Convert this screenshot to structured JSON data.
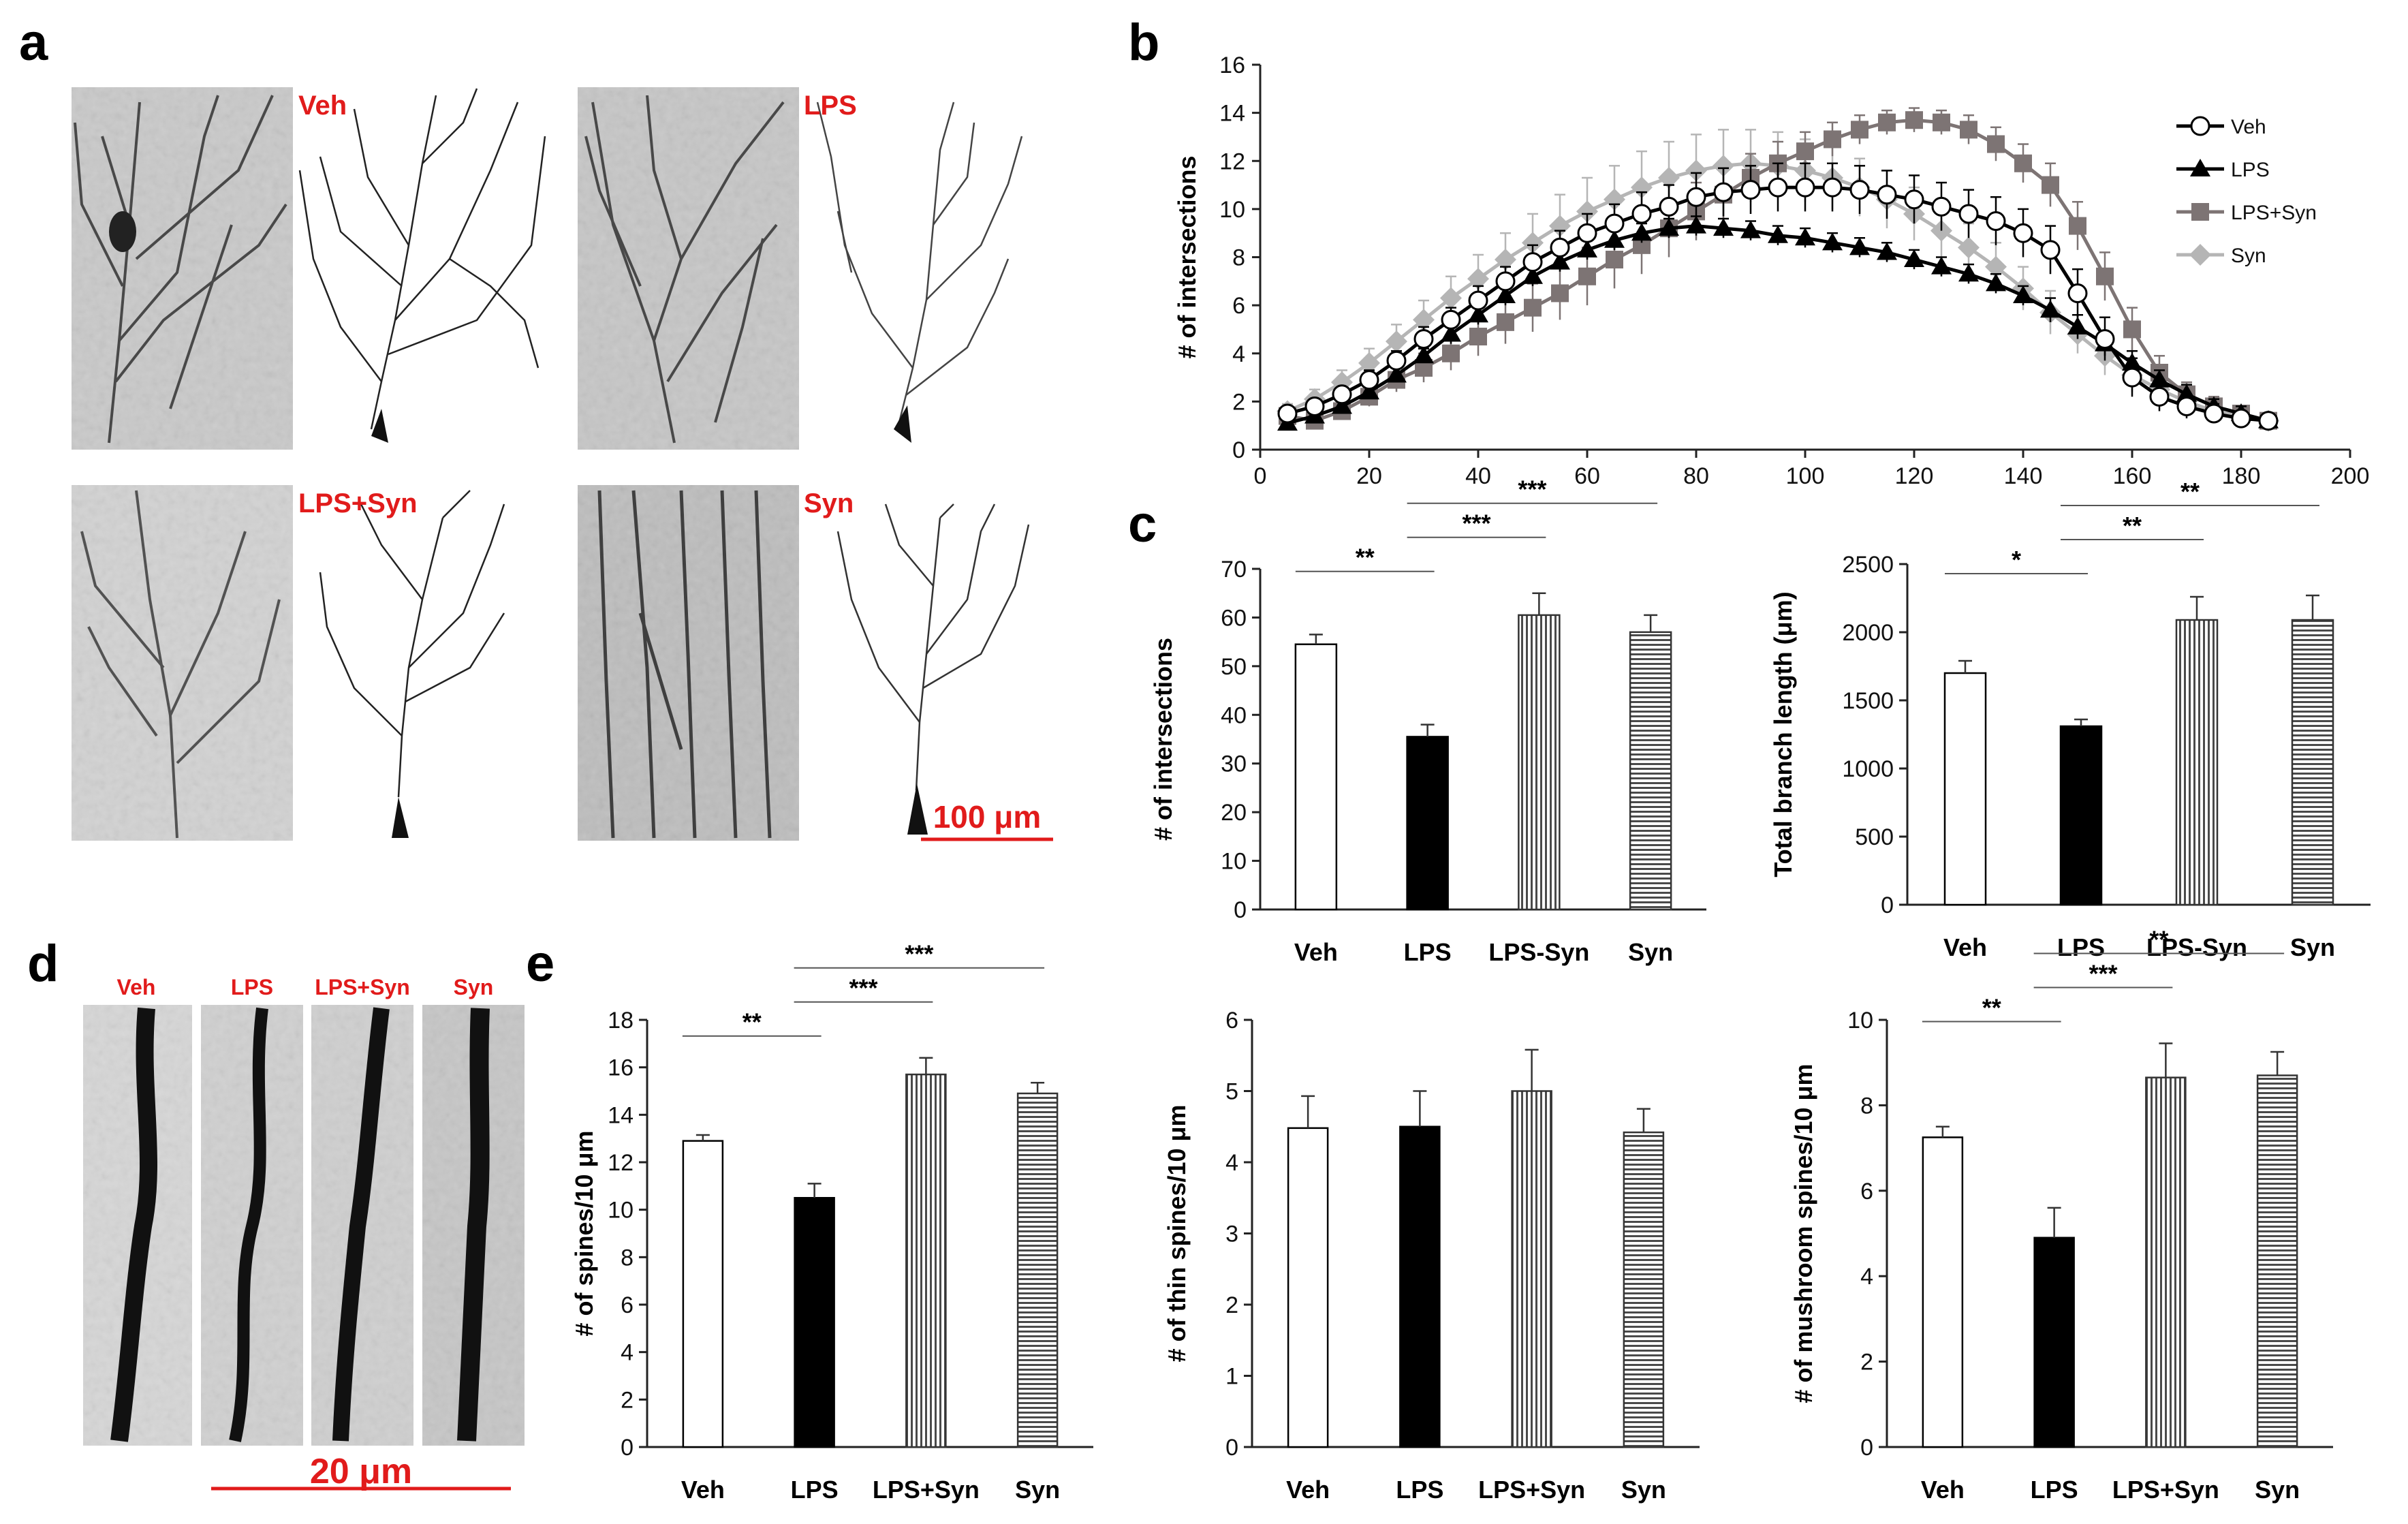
{
  "panel_labels": [
    "a",
    "b",
    "c",
    "d",
    "e"
  ],
  "panel_a": {
    "groups": [
      "Veh",
      "LPS",
      "LPS+Syn",
      "Syn"
    ],
    "scale_bar": "100 μm"
  },
  "panel_d": {
    "groups": [
      "Veh",
      "LPS",
      "LPS+Syn",
      "Syn"
    ],
    "scale_bar": "20 μm"
  },
  "colors": {
    "label_red": "#e11b1b",
    "veh": "#000000",
    "lps": "#000000",
    "lps_syn": "#7d7474",
    "syn": "#b5b5b5"
  },
  "chart_data": [
    {
      "id": "b",
      "type": "line",
      "title": "",
      "xlabel": "",
      "ylabel": "# of intersections",
      "xlim": [
        0,
        200
      ],
      "ylim": [
        0,
        16
      ],
      "xticks": [
        0,
        20,
        40,
        60,
        80,
        100,
        120,
        140,
        160,
        180,
        200
      ],
      "yticks": [
        0,
        2,
        4,
        6,
        8,
        10,
        12,
        14,
        16
      ],
      "x": [
        5,
        10,
        15,
        20,
        25,
        30,
        35,
        40,
        45,
        50,
        55,
        60,
        65,
        70,
        75,
        80,
        85,
        90,
        95,
        100,
        105,
        110,
        115,
        120,
        125,
        130,
        135,
        140,
        145,
        150,
        155,
        160,
        165,
        170,
        175,
        180,
        185
      ],
      "legend": [
        "Veh",
        "LPS",
        "LPS+Syn",
        "Syn"
      ],
      "legend_position": "top-right",
      "series": [
        {
          "name": "Veh",
          "marker": "open-circle",
          "values": [
            1.5,
            1.8,
            2.3,
            2.9,
            3.7,
            4.6,
            5.4,
            6.2,
            7.0,
            7.8,
            8.4,
            9.0,
            9.4,
            9.8,
            10.1,
            10.5,
            10.7,
            10.8,
            10.9,
            10.9,
            10.9,
            10.8,
            10.6,
            10.4,
            10.1,
            9.8,
            9.5,
            9.0,
            8.3,
            6.5,
            4.6,
            3.0,
            2.2,
            1.8,
            1.5,
            1.3,
            1.2
          ],
          "errors": [
            0.3,
            0.3,
            0.3,
            0.4,
            0.4,
            0.5,
            0.5,
            0.6,
            0.6,
            0.7,
            0.7,
            0.8,
            0.8,
            0.9,
            0.9,
            1.0,
            1.0,
            1.0,
            1.0,
            1.0,
            1.0,
            1.0,
            1.0,
            1.0,
            1.0,
            1.0,
            1.0,
            1.0,
            1.0,
            1.0,
            0.9,
            0.8,
            0.6,
            0.5,
            0.4,
            0.3,
            0.3
          ]
        },
        {
          "name": "LPS",
          "marker": "filled-triangle",
          "values": [
            1.1,
            1.4,
            1.8,
            2.4,
            3.1,
            3.9,
            4.8,
            5.6,
            6.4,
            7.2,
            7.8,
            8.3,
            8.7,
            9.0,
            9.2,
            9.3,
            9.2,
            9.1,
            8.9,
            8.8,
            8.6,
            8.4,
            8.2,
            7.9,
            7.6,
            7.3,
            6.9,
            6.4,
            5.8,
            5.1,
            4.4,
            3.6,
            2.9,
            2.3,
            1.8,
            1.5,
            1.2
          ],
          "errors": [
            0.2,
            0.2,
            0.2,
            0.3,
            0.3,
            0.3,
            0.4,
            0.4,
            0.4,
            0.4,
            0.4,
            0.4,
            0.4,
            0.4,
            0.4,
            0.4,
            0.4,
            0.4,
            0.4,
            0.4,
            0.4,
            0.4,
            0.4,
            0.4,
            0.4,
            0.4,
            0.4,
            0.4,
            0.5,
            0.5,
            0.5,
            0.5,
            0.4,
            0.4,
            0.3,
            0.3,
            0.3
          ]
        },
        {
          "name": "LPS+Syn",
          "marker": "filled-square",
          "values": [
            1.4,
            1.2,
            1.6,
            2.2,
            2.9,
            3.4,
            4.0,
            4.7,
            5.3,
            5.9,
            6.5,
            7.2,
            7.9,
            8.5,
            9.2,
            9.9,
            10.6,
            11.3,
            11.9,
            12.4,
            12.9,
            13.3,
            13.6,
            13.7,
            13.6,
            13.3,
            12.7,
            11.9,
            11.0,
            9.3,
            7.2,
            5.0,
            3.2,
            2.3,
            1.8,
            1.5,
            1.2
          ],
          "errors": [
            0.3,
            0.3,
            0.3,
            0.4,
            0.5,
            0.6,
            0.7,
            0.8,
            0.9,
            1.0,
            1.1,
            1.2,
            1.2,
            1.2,
            1.2,
            1.2,
            1.1,
            1.0,
            0.9,
            0.8,
            0.7,
            0.6,
            0.5,
            0.5,
            0.5,
            0.6,
            0.7,
            0.8,
            0.9,
            1.0,
            1.0,
            0.9,
            0.7,
            0.5,
            0.4,
            0.3,
            0.3
          ]
        },
        {
          "name": "Syn",
          "marker": "filled-diamond",
          "values": [
            1.6,
            2.1,
            2.8,
            3.6,
            4.5,
            5.4,
            6.3,
            7.1,
            7.9,
            8.6,
            9.3,
            9.9,
            10.4,
            10.9,
            11.3,
            11.6,
            11.8,
            11.9,
            11.8,
            11.6,
            11.3,
            10.9,
            10.4,
            9.8,
            9.1,
            8.4,
            7.6,
            6.7,
            5.7,
            4.8,
            3.9,
            3.1,
            2.5,
            2.0,
            1.6,
            1.4,
            1.2
          ],
          "errors": [
            0.3,
            0.4,
            0.5,
            0.6,
            0.7,
            0.8,
            0.9,
            1.0,
            1.1,
            1.2,
            1.3,
            1.4,
            1.4,
            1.5,
            1.5,
            1.5,
            1.5,
            1.4,
            1.4,
            1.3,
            1.3,
            1.2,
            1.2,
            1.1,
            1.1,
            1.0,
            1.0,
            0.9,
            0.9,
            0.8,
            0.8,
            0.7,
            0.6,
            0.5,
            0.4,
            0.3,
            0.3
          ]
        }
      ]
    },
    {
      "id": "c1",
      "type": "bar",
      "title": "",
      "ylabel": "# of intersections",
      "categories": [
        "Veh",
        "LPS",
        "LPS-Syn",
        "Syn"
      ],
      "values": [
        54.5,
        35.5,
        60.5,
        57.0
      ],
      "errors": [
        2,
        2.5,
        4.5,
        3.5
      ],
      "ylim": [
        0,
        70
      ],
      "yticks": [
        0,
        10,
        20,
        30,
        40,
        50,
        60,
        70
      ],
      "significance": [
        {
          "from": 0,
          "to": 1,
          "label": "**"
        },
        {
          "from": 1,
          "to": 2,
          "label": "***"
        },
        {
          "from": 1,
          "to": 3,
          "label": "***"
        }
      ]
    },
    {
      "id": "c2",
      "type": "bar",
      "title": "",
      "ylabel": "Total branch length (μm)",
      "categories": [
        "Veh",
        "LPS",
        "LPS-Syn",
        "Syn"
      ],
      "values": [
        1700,
        1310,
        2090,
        2090
      ],
      "errors": [
        90,
        50,
        170,
        180
      ],
      "ylim": [
        0,
        2500
      ],
      "yticks": [
        0,
        500,
        1000,
        1500,
        2000,
        2500
      ],
      "significance": [
        {
          "from": 0,
          "to": 1,
          "label": "*"
        },
        {
          "from": 1,
          "to": 2,
          "label": "**"
        },
        {
          "from": 1,
          "to": 3,
          "label": "**"
        }
      ]
    },
    {
      "id": "e1",
      "type": "bar",
      "title": "",
      "ylabel": "# of spines/10 μm",
      "categories": [
        "Veh",
        "LPS",
        "LPS+Syn",
        "Syn"
      ],
      "values": [
        12.9,
        10.5,
        15.7,
        14.9
      ],
      "errors": [
        0.25,
        0.6,
        0.7,
        0.45
      ],
      "ylim": [
        0,
        18
      ],
      "yticks": [
        0,
        2,
        4,
        6,
        8,
        10,
        12,
        14,
        16,
        18
      ],
      "significance": [
        {
          "from": 0,
          "to": 1,
          "label": "**"
        },
        {
          "from": 1,
          "to": 2,
          "label": "***"
        },
        {
          "from": 1,
          "to": 3,
          "label": "***"
        }
      ]
    },
    {
      "id": "e2",
      "type": "bar",
      "title": "",
      "ylabel": "# of thin spines/10 μm",
      "categories": [
        "Veh",
        "LPS",
        "LPS+Syn",
        "Syn"
      ],
      "values": [
        4.48,
        4.5,
        5.0,
        4.42
      ],
      "errors": [
        0.45,
        0.5,
        0.58,
        0.33
      ],
      "ylim": [
        0,
        6
      ],
      "yticks": [
        0,
        1,
        2,
        3,
        4,
        5,
        6
      ],
      "significance": []
    },
    {
      "id": "e3",
      "type": "bar",
      "title": "",
      "ylabel": "# of mushroom spines/10 μm",
      "categories": [
        "Veh",
        "LPS",
        "LPS+Syn",
        "Syn"
      ],
      "values": [
        7.25,
        4.9,
        8.65,
        8.7
      ],
      "errors": [
        0.25,
        0.7,
        0.8,
        0.55
      ],
      "ylim": [
        0,
        10
      ],
      "yticks": [
        0,
        2,
        4,
        6,
        8,
        10
      ],
      "significance": [
        {
          "from": 0,
          "to": 1,
          "label": "**"
        },
        {
          "from": 1,
          "to": 2,
          "label": "***"
        },
        {
          "from": 1,
          "to": 3,
          "label": "**"
        }
      ]
    }
  ]
}
